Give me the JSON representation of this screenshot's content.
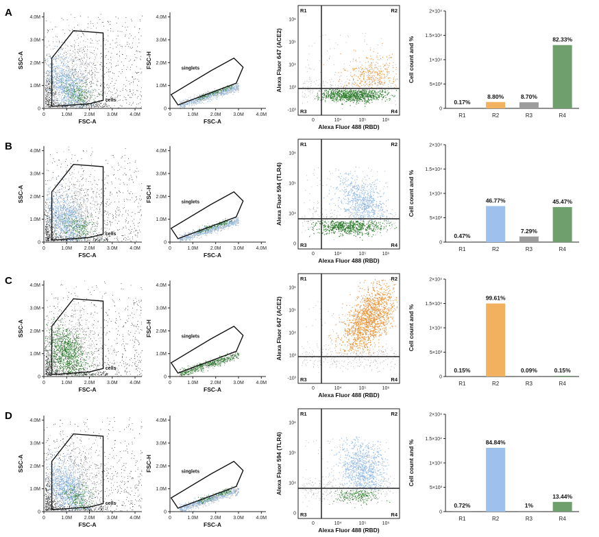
{
  "colors": {
    "blue": "#93bbe8",
    "green": "#2f7d2f",
    "orange": "#eb9237",
    "gray": "#a6a6a6",
    "black": "#111111",
    "bar_green": "#6e9f6c",
    "bar_gray": "#9c9c9c",
    "bar_blue": "#9dc0ec",
    "bar_orange": "#f1b15e"
  },
  "panels": [
    {
      "letter": "A",
      "scatter1": {
        "xlabel": "FSC-A",
        "ylabel": "SSC-A",
        "gate_label": "cells",
        "x_ticks": [
          "0",
          "1.0M",
          "2.0M",
          "3.0M",
          "4.0M"
        ],
        "y_ticks": [
          "0",
          "1.0M",
          "2.0M",
          "3.0M",
          "4.0M"
        ]
      },
      "scatter2": {
        "xlabel": "FSC-A",
        "ylabel": "FSC-H",
        "gate_label": "singlets",
        "x_ticks": [
          "0",
          "1.0M",
          "2.0M",
          "3.0M",
          "4.0M"
        ],
        "y_ticks": [
          "0",
          "1.0M",
          "2.0M",
          "3.0M",
          "4.0M"
        ]
      },
      "scatter3": {
        "xlabel": "Alexa Fluor 488 (RBD)",
        "ylabel": "Alexa Fluor 647 (ACE2)",
        "quadrants": [
          "R1",
          "R2",
          "R3",
          "R4"
        ],
        "x_ticks": [
          "0",
          "10⁴",
          "10⁵",
          "10⁶"
        ],
        "y_ticks": [
          "10⁶",
          "10⁵",
          "10⁴",
          "10³",
          "-10³"
        ]
      },
      "bar": {
        "ylabel": "Cell count and %",
        "y_ticks": [
          "0",
          "5×10³",
          "1×10⁴",
          "1.5×10⁴",
          "2×10⁴"
        ]
      }
    },
    {
      "letter": "B",
      "scatter1": {
        "xlabel": "FSC-A",
        "ylabel": "SSC-A",
        "gate_label": "cells",
        "x_ticks": [
          "0",
          "1.0M",
          "2.0M",
          "3.0M",
          "4.0M"
        ],
        "y_ticks": [
          "0",
          "1.0M",
          "2.0M",
          "3.0M",
          "4.0M"
        ]
      },
      "scatter2": {
        "xlabel": "FSC-A",
        "ylabel": "FSC-H",
        "gate_label": "singlets",
        "x_ticks": [
          "0",
          "1.0M",
          "2.0M",
          "3.0M",
          "4.0M"
        ],
        "y_ticks": [
          "0",
          "1.0M",
          "2.0M",
          "3.0M",
          "4.0M"
        ]
      },
      "scatter3": {
        "xlabel": "Alexa Fluor 488 (RBD)",
        "ylabel": "Alexa Fluor 594 (TLR4)",
        "quadrants": [
          "R1",
          "R2",
          "R3",
          "R4"
        ],
        "x_ticks": [
          "0",
          "10⁴",
          "10⁵",
          "10⁶"
        ],
        "y_ticks": [
          "10⁶",
          "10⁵",
          "10⁴",
          "0"
        ]
      },
      "bar": {
        "ylabel": "Cell count and %",
        "y_ticks": [
          "0",
          "5×10³",
          "1×10⁴",
          "1.5×10⁴",
          "2×10⁴"
        ]
      }
    },
    {
      "letter": "C",
      "scatter1": {
        "xlabel": "FSC-A",
        "ylabel": "SSC-A",
        "gate_label": "cells",
        "x_ticks": [
          "0",
          "1.0M",
          "2.0M",
          "3.0M",
          "4.0M"
        ],
        "y_ticks": [
          "0",
          "1.0M",
          "2.0M",
          "3.0M",
          "4.0M"
        ]
      },
      "scatter2": {
        "xlabel": "FSC-A",
        "ylabel": "FSC-H",
        "gate_label": "singlets",
        "x_ticks": [
          "0",
          "1.0M",
          "2.0M",
          "3.0M",
          "4.0M"
        ],
        "y_ticks": [
          "0",
          "1.0M",
          "2.0M",
          "3.0M",
          "4.0M"
        ]
      },
      "scatter3": {
        "xlabel": "Alexa Fluor 488 (RBD)",
        "ylabel": "Alexa Fluor 647 (ACE2)",
        "quadrants": [
          "R1",
          "R2",
          "R3",
          "R4"
        ],
        "x_ticks": [
          "0",
          "10⁴",
          "10⁵",
          "10⁶"
        ],
        "y_ticks": [
          "10⁶",
          "10⁵",
          "10⁴",
          "10³",
          "-10³"
        ]
      },
      "bar": {
        "ylabel": "Cell count and %",
        "y_ticks": [
          "0",
          "5×10³",
          "1×10⁴",
          "1.5×10⁴",
          "2×10⁴"
        ]
      }
    },
    {
      "letter": "D",
      "scatter1": {
        "xlabel": "FSC-A",
        "ylabel": "SSC-A",
        "gate_label": "cells",
        "x_ticks": [
          "0",
          "1.0M",
          "2.0M",
          "3.0M",
          "4.0M"
        ],
        "y_ticks": [
          "0",
          "1.0M",
          "2.0M",
          "3.0M",
          "4.0M"
        ]
      },
      "scatter2": {
        "xlabel": "FSC-A",
        "ylabel": "FSC-H",
        "gate_label": "singlets",
        "x_ticks": [
          "0",
          "1.0M",
          "2.0M",
          "3.0M",
          "4.0M"
        ],
        "y_ticks": [
          "0",
          "1.0M",
          "2.0M",
          "3.0M",
          "4.0M"
        ]
      },
      "scatter3": {
        "xlabel": "Alexa Fluor 488 (RBD)",
        "ylabel": "Alexa Fluor 594 (TLR4)",
        "quadrants": [
          "R1",
          "R2",
          "R3",
          "R4"
        ],
        "x_ticks": [
          "0",
          "10⁴",
          "10⁵",
          "10⁶"
        ],
        "y_ticks": [
          "10⁶",
          "10⁵",
          "10⁴",
          "0"
        ]
      },
      "bar": {
        "ylabel": "Cell count and %",
        "y_ticks": [
          "0",
          "5×10³",
          "1×10⁴",
          "1.5×10⁴",
          "2×10⁴"
        ]
      }
    }
  ],
  "chart_data": [
    {
      "type": "bar",
      "panel": "A",
      "categories": [
        "R1",
        "R2",
        "R3",
        "R4"
      ],
      "values": [
        20,
        1300,
        1250,
        13000
      ],
      "labels": [
        "0.17%",
        "8.80%",
        "8.70%",
        "82.33%"
      ],
      "colors": [
        "#9c9c9c",
        "#f1b15e",
        "#9c9c9c",
        "#6e9f6c"
      ],
      "ylabel": "Cell count and %",
      "ylim": [
        0,
        20000
      ]
    },
    {
      "type": "bar",
      "panel": "B",
      "categories": [
        "R1",
        "R2",
        "R3",
        "R4"
      ],
      "values": [
        70,
        7400,
        1150,
        7200
      ],
      "labels": [
        "0.47%",
        "46.77%",
        "7.29%",
        "45.47%"
      ],
      "colors": [
        "#9c9c9c",
        "#9dc0ec",
        "#9c9c9c",
        "#6e9f6c"
      ],
      "ylabel": "Cell count and %",
      "ylim": [
        0,
        20000
      ]
    },
    {
      "type": "bar",
      "panel": "C",
      "categories": [
        "R1",
        "R2",
        "R3",
        "R4"
      ],
      "values": [
        20,
        15000,
        15,
        20
      ],
      "labels": [
        "0.15%",
        "99.61%",
        "0.09%",
        "0.15%"
      ],
      "colors": [
        "#9c9c9c",
        "#f1b15e",
        "#9c9c9c",
        "#6e9f6c"
      ],
      "ylabel": "Cell count and %",
      "ylim": [
        0,
        20000
      ]
    },
    {
      "type": "bar",
      "panel": "D",
      "categories": [
        "R1",
        "R2",
        "R3",
        "R4"
      ],
      "values": [
        110,
        13100,
        150,
        2000
      ],
      "labels": [
        "0.72%",
        "84.84%",
        "1%",
        "13.44%"
      ],
      "colors": [
        "#9c9c9c",
        "#9dc0ec",
        "#9c9c9c",
        "#6e9f6c"
      ],
      "ylabel": "Cell count and %",
      "ylim": [
        0,
        20000
      ]
    }
  ]
}
